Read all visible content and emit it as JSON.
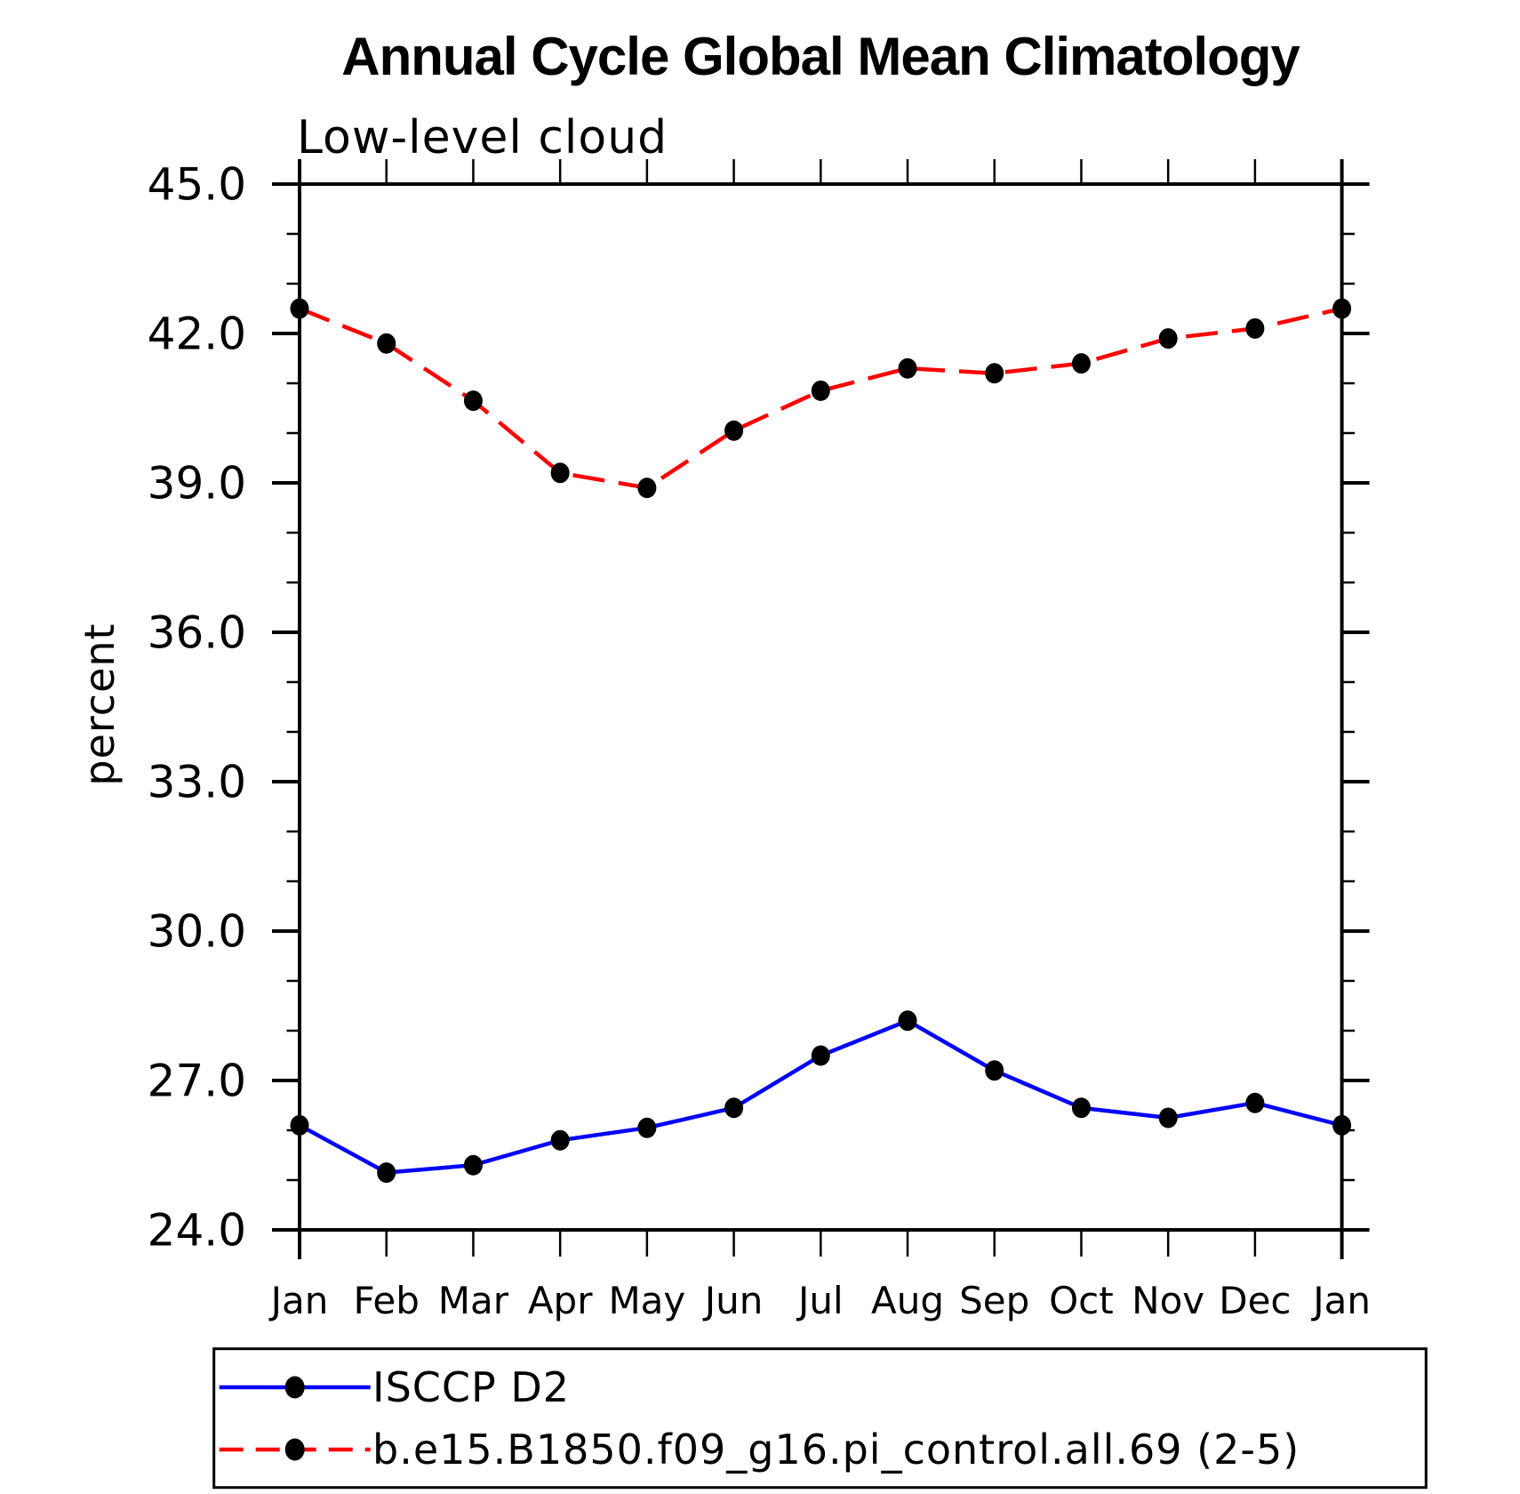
{
  "title": "Annual Cycle Global Mean Climatology",
  "subtitle": "Low-level cloud",
  "y_axis_label": "percent",
  "colors": {
    "background": "#ffffff",
    "axis": "#000000",
    "text": "#000000",
    "series1_line": "#0000ff",
    "series2_line": "#ff0000",
    "marker": "#000000"
  },
  "chart_data": {
    "type": "line",
    "title": "Annual Cycle Global Mean Climatology",
    "subtitle": "Low-level cloud",
    "xlabel": "",
    "ylabel": "percent",
    "x_categories": [
      "Jan",
      "Feb",
      "Mar",
      "Apr",
      "May",
      "Jun",
      "Jul",
      "Aug",
      "Sep",
      "Oct",
      "Nov",
      "Dec",
      "Jan"
    ],
    "ylim": [
      24.0,
      45.0
    ],
    "y_major_tick_step": 3.0,
    "y_minor_tick_step": 1.0,
    "y_tick_decimals": 1,
    "grid": false,
    "legend_position": "bottom-box",
    "series": [
      {
        "name": "ISCCP D2",
        "line_color": "#0000ff",
        "line_style": "solid",
        "marker": "filled-circle",
        "marker_color": "#000000",
        "values": [
          26.1,
          25.15,
          25.3,
          25.8,
          26.05,
          26.45,
          27.5,
          28.2,
          27.2,
          26.45,
          26.25,
          26.55,
          26.1
        ]
      },
      {
        "name": "b.e15.B1850.f09_g16.pi_control.all.69 (2-5)",
        "line_color": "#ff0000",
        "line_style": "dashed",
        "marker": "filled-circle",
        "marker_color": "#000000",
        "values": [
          42.5,
          41.8,
          40.65,
          39.2,
          38.9,
          40.05,
          40.85,
          41.3,
          41.2,
          41.4,
          41.9,
          42.1,
          42.5
        ]
      }
    ]
  }
}
